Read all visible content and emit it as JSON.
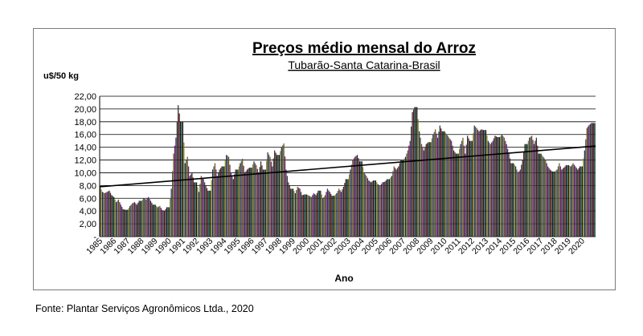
{
  "chart_data": {
    "type": "bar",
    "title": "Preços médio mensal do Arroz",
    "subtitle": "Tubarão-Santa Catarina-Brasil",
    "ylabel": "u$/50 kg",
    "xlabel": "Ano",
    "ylim": [
      0,
      22
    ],
    "y_ticks": [
      "22,00",
      "20,00",
      "18,00",
      "16,00",
      "14,00",
      "12,00",
      "10,00",
      "8,00",
      "6,00",
      "4,00",
      "2,00",
      "-"
    ],
    "grid": "horizontal",
    "legend": "none",
    "categories": [
      "1985",
      "1986",
      "1987",
      "1988",
      "1989",
      "1990",
      "1991",
      "1992",
      "1993",
      "1994",
      "1995",
      "1996",
      "1997",
      "1998",
      "1999",
      "2000",
      "2001",
      "2002",
      "2003",
      "2004",
      "2005",
      "2006",
      "2007",
      "2008",
      "2009",
      "2010",
      "2011",
      "2012",
      "2013",
      "2014",
      "2015",
      "2016",
      "2017",
      "2018",
      "2019",
      "2020"
    ],
    "monthly_anchor_values": [
      [
        7.8,
        7.0,
        6.8,
        7.0,
        7.2,
        6.5
      ],
      [
        6.2,
        5.4,
        5.8,
        5.0,
        4.3,
        4.2
      ],
      [
        4.2,
        4.8,
        5.2,
        5.4,
        5.0,
        5.6
      ],
      [
        5.6,
        6.0,
        5.8,
        6.2,
        5.6,
        5.0
      ],
      [
        5.0,
        4.6,
        4.8,
        4.2,
        4.0,
        4.6
      ],
      [
        4.6,
        7.5,
        13.0,
        15.5,
        20.6,
        18.0
      ],
      [
        18.0,
        11.5,
        12.5,
        9.5,
        10.0,
        8.5
      ],
      [
        8.5,
        7.0,
        9.5,
        9.0,
        8.0,
        7.2
      ],
      [
        7.2,
        10.5,
        11.5,
        9.5,
        10.5,
        11.0
      ],
      [
        11.0,
        12.8,
        12.5,
        10.0,
        9.0,
        10.5
      ],
      [
        10.5,
        11.5,
        12.2,
        10.0,
        10.5,
        10.8
      ],
      [
        10.8,
        11.8,
        11.2,
        10.0,
        11.8,
        10.5
      ],
      [
        10.5,
        13.2,
        12.5,
        11.0,
        13.5,
        12.8
      ],
      [
        12.8,
        14.0,
        14.6,
        10.5,
        8.5,
        7.5
      ],
      [
        7.5,
        6.8,
        7.8,
        7.5,
        6.5,
        6.6
      ],
      [
        6.6,
        6.4,
        6.2,
        6.8,
        6.5,
        7.2
      ],
      [
        7.2,
        6.0,
        6.5,
        7.5,
        7.0,
        6.4
      ],
      [
        6.4,
        6.8,
        7.5,
        7.0,
        7.8,
        9.0
      ],
      [
        9.0,
        10.5,
        12.0,
        12.5,
        12.8,
        11.8
      ],
      [
        11.8,
        10.0,
        9.5,
        8.8,
        8.5,
        8.8
      ],
      [
        8.8,
        8.2,
        8.0,
        8.5,
        8.6,
        9.0
      ],
      [
        9.0,
        9.5,
        11.0,
        10.5,
        11.0,
        12.0
      ],
      [
        12.0,
        12.5,
        13.5,
        15.0,
        19.5,
        20.3
      ],
      [
        20.3,
        16.5,
        14.5,
        13.5,
        14.5,
        14.8
      ],
      [
        14.8,
        16.0,
        16.8,
        15.5,
        17.4,
        16.5
      ],
      [
        16.5,
        16.0,
        15.5,
        15.0,
        13.5,
        13.0
      ],
      [
        13.0,
        14.5,
        15.5,
        13.0,
        15.8,
        15.0
      ],
      [
        15.0,
        17.4,
        17.0,
        16.5,
        16.8,
        16.7
      ],
      [
        16.7,
        15.0,
        14.5,
        15.0,
        15.8,
        15.6
      ],
      [
        15.6,
        16.0,
        15.5,
        14.5,
        13.0,
        11.5
      ],
      [
        11.5,
        11.0,
        10.0,
        10.5,
        12.0,
        14.5
      ],
      [
        14.5,
        15.5,
        15.8,
        14.5,
        15.5,
        13.0
      ],
      [
        13.0,
        12.5,
        12.0,
        11.0,
        10.5,
        10.2
      ],
      [
        10.2,
        10.5,
        11.5,
        10.5,
        10.8,
        11.2
      ],
      [
        11.2,
        11.0,
        11.5,
        11.0,
        10.5,
        11.0
      ],
      [
        11.0,
        13.5,
        17.0,
        17.5,
        17.8,
        17.8
      ]
    ],
    "trendline": {
      "start": 7.8,
      "end": 14.2
    },
    "series_colors": [
      "#1a1a1a",
      "#3a3a3a",
      "#222a55",
      "#6a1a1a",
      "#5a5a1a",
      "#1a4a3a",
      "#4a2a6a",
      "#8a8a1a",
      "#2a2a2a",
      "#555555",
      "#123",
      "#6b1b5b"
    ],
    "trend_color": "#000000"
  },
  "footer": {
    "source": "Fonte: Plantar Serviços Agronômicos Ltda., 2020"
  }
}
